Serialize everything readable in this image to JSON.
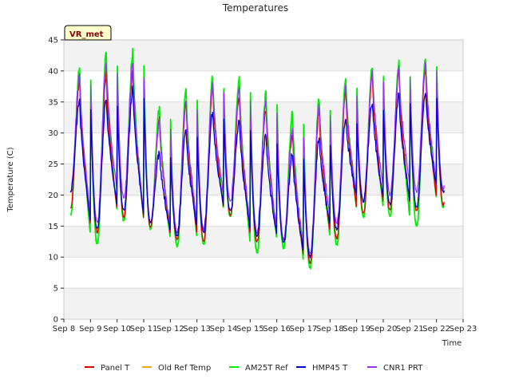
{
  "chart_data": {
    "type": "line",
    "title": "Temperatures",
    "xlabel": "Time",
    "ylabel": "Temperature (C)",
    "badge": "VR_met",
    "ylim": [
      0,
      45
    ],
    "yticks": [
      0,
      5,
      10,
      15,
      20,
      25,
      30,
      35,
      40,
      45
    ],
    "xlim": [
      8,
      23
    ],
    "xticks": [
      {
        "value": 8,
        "label": "Sep 8"
      },
      {
        "value": 9,
        "label": "Sep 9"
      },
      {
        "value": 10,
        "label": "Sep 10"
      },
      {
        "value": 11,
        "label": "Sep 11"
      },
      {
        "value": 12,
        "label": "Sep 12"
      },
      {
        "value": 13,
        "label": "Sep 13"
      },
      {
        "value": 14,
        "label": "Sep 14"
      },
      {
        "value": 15,
        "label": "Sep 15"
      },
      {
        "value": 16,
        "label": "Sep 16"
      },
      {
        "value": 17,
        "label": "Sep 17"
      },
      {
        "value": 18,
        "label": "Sep 18"
      },
      {
        "value": 19,
        "label": "Sep 19"
      },
      {
        "value": 20,
        "label": "Sep 20"
      },
      {
        "value": 21,
        "label": "Sep 21"
      },
      {
        "value": 22,
        "label": "Sep 22"
      },
      {
        "value": 23,
        "label": "Sep 23"
      }
    ],
    "data_start": 8.25,
    "data_end": 22.3,
    "series": [
      {
        "name": "Panel T",
        "color": "#dd0000",
        "mins": [
          18.0,
          14.0,
          16.5,
          14.8,
          12.8,
          12.5,
          16.8,
          12.5,
          12.8,
          9.0,
          13.0,
          17.0,
          17.5,
          17.5,
          18.5
        ],
        "maxs": [
          null,
          38.5,
          39.5,
          40.0,
          32.0,
          35.0,
          37.5,
          36.0,
          34.0,
          30.0,
          33.5,
          37.0,
          39.5,
          40.0,
          40.5
        ]
      },
      {
        "name": "Old Ref Temp",
        "color": "#ffa500",
        "mins": [],
        "maxs": []
      },
      {
        "name": "AM25T Ref",
        "color": "#00ee00",
        "mins": [
          16.8,
          12.0,
          15.8,
          14.5,
          11.8,
          12.0,
          16.5,
          10.8,
          11.5,
          8.2,
          12.0,
          16.5,
          16.5,
          15.0,
          18.0
        ],
        "maxs": [
          null,
          40.8,
          43.2,
          43.2,
          34.0,
          37.2,
          39.2,
          38.8,
          36.5,
          33.5,
          35.5,
          39.0,
          41.0,
          41.2,
          42.5
        ]
      },
      {
        "name": "HMP45 T",
        "color": "#0000cc",
        "mins": [
          20.5,
          14.5,
          17.5,
          15.5,
          13.5,
          14.0,
          17.5,
          13.5,
          12.5,
          10.0,
          14.5,
          19.0,
          18.5,
          18.0,
          20.5
        ],
        "maxs": [
          null,
          35.5,
          35.8,
          37.2,
          27.0,
          30.8,
          33.5,
          32.0,
          29.8,
          27.0,
          29.2,
          32.5,
          35.2,
          36.2,
          37.0
        ]
      },
      {
        "name": "CNR1 PRT",
        "color": "#9b30ff",
        "mins": [
          20.5,
          15.5,
          19.5,
          15.5,
          14.0,
          14.5,
          19.0,
          14.0,
          13.0,
          10.5,
          15.5,
          19.0,
          20.0,
          20.5,
          21.0
        ],
        "maxs": [
          null,
          39.5,
          41.5,
          41.0,
          32.0,
          35.5,
          38.0,
          37.0,
          35.0,
          31.0,
          34.5,
          37.5,
          40.0,
          40.5,
          41.5
        ]
      }
    ]
  }
}
